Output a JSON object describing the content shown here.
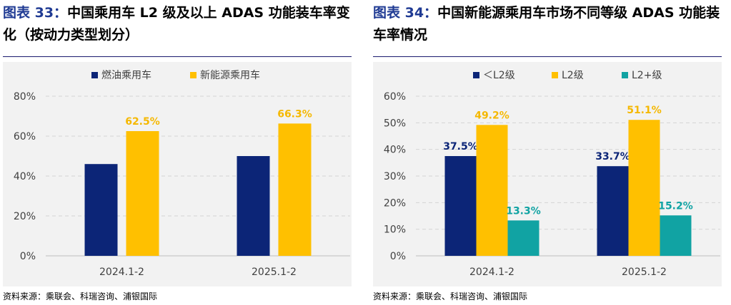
{
  "charts": [
    {
      "title_label": "图表 33：",
      "title_text": "中国乘用车 L2 级及以上 ADAS 功能装车率变化（按动力类型划分）",
      "source": "资料来源：乘联会、科瑞咨询、浦银国际",
      "chart_data": {
        "type": "bar",
        "categories": [
          "2024.1-2",
          "2025.1-2"
        ],
        "series": [
          {
            "name": "燃油乘用车",
            "values": [
              46,
              50
            ],
            "labels": [
              "",
              ""
            ],
            "color": "#0c2577",
            "label_color": "#0c2577"
          },
          {
            "name": "新能源乘用车",
            "values": [
              62.5,
              66.3
            ],
            "labels": [
              "62.5%",
              "66.3%"
            ],
            "color": "#ffc000",
            "label_color": "#f5b800"
          }
        ],
        "ylim": [
          0,
          80
        ],
        "yticks": [
          "0%",
          "20%",
          "40%",
          "60%",
          "80%"
        ],
        "ytick_values": [
          0,
          20,
          40,
          60,
          80
        ],
        "grid": true,
        "legend_position": "top"
      }
    },
    {
      "title_label": "图表 34：",
      "title_text": "中国新能源乘用车市场不同等级 ADAS 功能装车率情况",
      "source": "资料来源：乘联会、科瑞咨询、浦银国际",
      "chart_data": {
        "type": "bar",
        "categories": [
          "2024.1-2",
          "2025.1-2"
        ],
        "series": [
          {
            "name": "＜L2级",
            "values": [
              37.5,
              33.7
            ],
            "labels": [
              "37.5%",
              "33.7%"
            ],
            "color": "#0c2577",
            "label_color": "#0c2577"
          },
          {
            "name": "L2级",
            "values": [
              49.2,
              51.1
            ],
            "labels": [
              "49.2%",
              "51.1%"
            ],
            "color": "#ffc000",
            "label_color": "#f5b800"
          },
          {
            "name": "L2+级",
            "values": [
              13.3,
              15.2
            ],
            "labels": [
              "13.3%",
              "15.2%"
            ],
            "color": "#11a3a3",
            "label_color": "#11a3a3"
          }
        ],
        "ylim": [
          0,
          60
        ],
        "yticks": [
          "0%",
          "10%",
          "20%",
          "30%",
          "40%",
          "50%",
          "60%"
        ],
        "ytick_values": [
          0,
          10,
          20,
          30,
          40,
          50,
          60
        ],
        "grid": true,
        "legend_position": "top"
      }
    }
  ]
}
